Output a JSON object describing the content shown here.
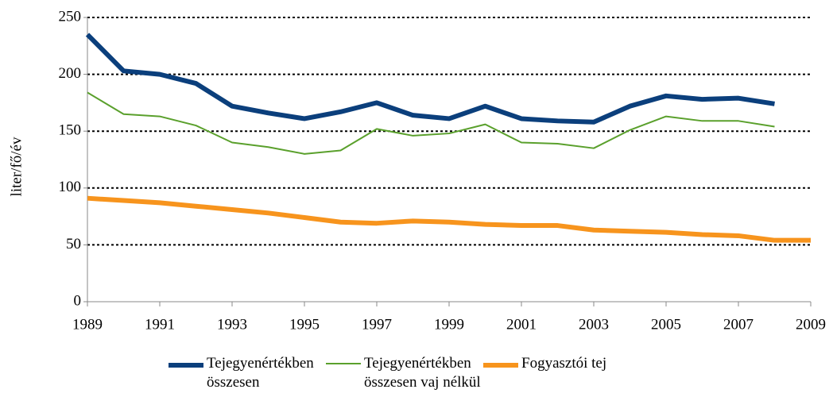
{
  "chart_data": {
    "type": "line",
    "y_label": "liter/fő/év",
    "x": [
      1989,
      1990,
      1991,
      1992,
      1993,
      1994,
      1995,
      1996,
      1997,
      1998,
      1999,
      2000,
      2001,
      2002,
      2003,
      2004,
      2005,
      2006,
      2007,
      2008,
      2009
    ],
    "series": [
      {
        "name": "Tejegyenértékben összesen",
        "color": "#0b3f7c",
        "width": 6,
        "values": [
          235,
          203,
          200,
          192,
          172,
          166,
          161,
          167,
          175,
          164,
          161,
          172,
          161,
          159,
          158,
          172,
          181,
          178,
          179,
          174,
          null
        ]
      },
      {
        "name": "Tejegyenértékben összesen vaj nélkül",
        "color": "#5aa02c",
        "width": 2,
        "values": [
          184,
          165,
          163,
          155,
          140,
          136,
          130,
          133,
          152,
          146,
          148,
          156,
          140,
          139,
          135,
          151,
          163,
          159,
          159,
          154,
          null
        ]
      },
      {
        "name": "Fogyasztói tej",
        "color": "#f7941d",
        "width": 6,
        "values": [
          91,
          89,
          87,
          84,
          81,
          78,
          74,
          70,
          69,
          71,
          70,
          68,
          67,
          67,
          63,
          62,
          61,
          59,
          58,
          54,
          54
        ]
      }
    ],
    "xlim": [
      1989,
      2009
    ],
    "xticks": [
      1989,
      1991,
      1993,
      1995,
      1997,
      1999,
      2001,
      2003,
      2005,
      2007,
      2009
    ],
    "ylim": [
      0,
      250
    ],
    "yticks": [
      0,
      50,
      100,
      150,
      200,
      250
    ],
    "grid": true
  }
}
